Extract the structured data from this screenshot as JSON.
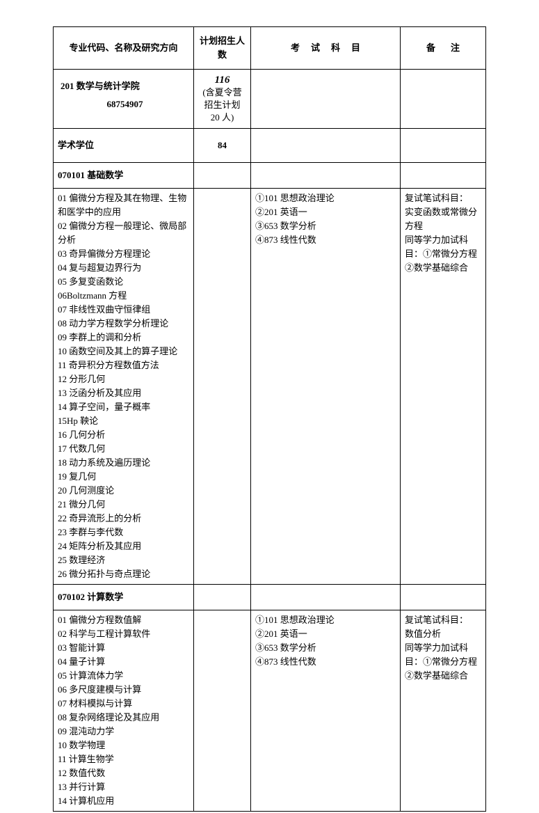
{
  "header": {
    "col1": "专业代码、名称及研究方向",
    "col2": "计划招生人数",
    "col3": "考试科目",
    "col4": "备注"
  },
  "department": {
    "name": "201 数学与统计学院",
    "phone": "68754907",
    "plan_number": "116",
    "plan_note1": "(含夏令营",
    "plan_note2": "招生计划",
    "plan_note3": "20 人)"
  },
  "degree": {
    "label": "学术学位",
    "count": "84"
  },
  "majors": [
    {
      "code_name": "070101 基础数学",
      "directions": [
        "01 偏微分方程及其在物理、生物和医学中的应用",
        "02 偏微分方程一般理论、微局部分析",
        "03 奇异偏微分方程理论",
        "04 复与超复边界行为",
        "05 多复变函数论",
        "06Boltzmann 方程",
        "07 非线性双曲守恒律组",
        "08 动力学方程数学分析理论",
        "09 李群上的调和分析",
        "10 函数空间及其上的算子理论",
        "11 奇异积分方程数值方法",
        "12 分形几何",
        "13 泛函分析及其应用",
        "14 算子空间，量子概率",
        "15Hp 鞅论",
        "16 几何分析",
        "17 代数几何",
        "18 动力系统及遍历理论",
        "19 复几何",
        "20 几何测度论",
        "21 微分几何",
        "22 奇异流形上的分析",
        "23 李群与李代数",
        "24 矩阵分析及其应用",
        "25 数理经济",
        "26 微分拓扑与奇点理论"
      ],
      "exams": [
        "①101 思想政治理论",
        "②201 英语一",
        "③653 数学分析",
        "④873 线性代数"
      ],
      "remarks": [
        "复试笔试科目：",
        "实变函数或常微分方程",
        "同等学力加试科目：①常微分方程②数学基础综合"
      ]
    },
    {
      "code_name": "070102 计算数学",
      "directions": [
        "01 偏微分方程数值解",
        "02 科学与工程计算软件",
        "03 智能计算",
        "04 量子计算",
        "05 计算流体力学",
        "06 多尺度建模与计算",
        "07 材料模拟与计算",
        "08 复杂网络理论及其应用",
        "09 混沌动力学",
        "10 数学物理",
        "11 计算生物学",
        "12 数值代数",
        "13 并行计算",
        "14 计算机应用"
      ],
      "exams": [
        "①101 思想政治理论",
        "②201 英语一",
        "③653 数学分析",
        "④873 线性代数"
      ],
      "remarks": [
        "复试笔试科目：",
        "数值分析",
        "同等学力加试科目：①常微分方程②数学基础综合"
      ]
    }
  ]
}
